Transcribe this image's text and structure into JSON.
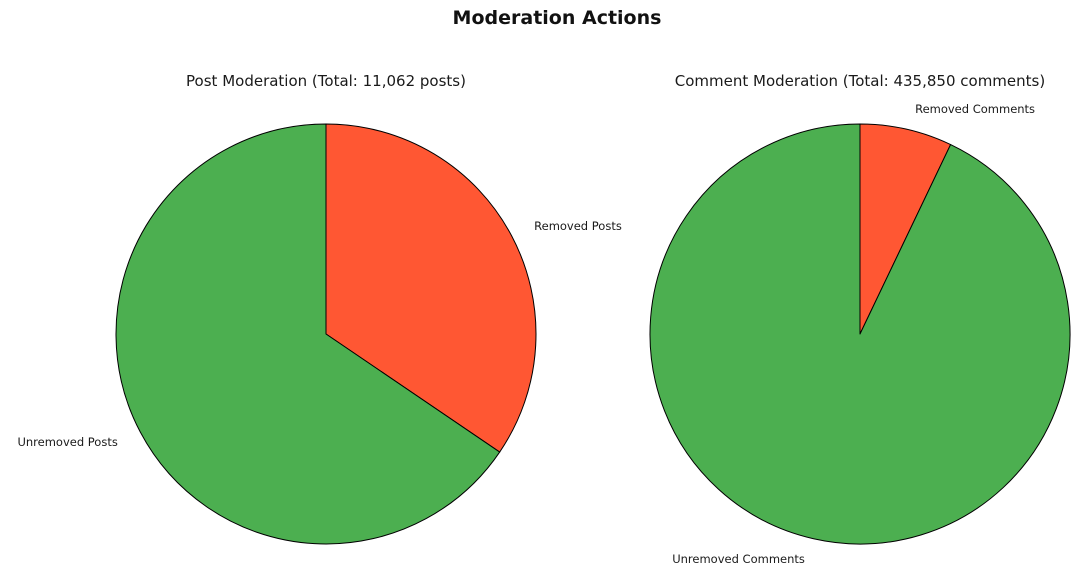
{
  "main_title": "Moderation Actions",
  "background_color": "#ffffff",
  "wedge_edge_color": "#000000",
  "chart_data": [
    {
      "type": "pie",
      "title": "Post Moderation (Total: 11,062 posts)",
      "total": "11,062",
      "unit": "posts",
      "start_angle": "12-o-clock",
      "direction": "clockwise",
      "slices": [
        {
          "label": "Removed Posts",
          "percent": 34.5,
          "percent_label": "34.5%",
          "color": "#FF5733"
        },
        {
          "label": "Unremoved Posts",
          "percent": 65.5,
          "percent_label": "65.5%",
          "color": "#4CAF50"
        }
      ]
    },
    {
      "type": "pie",
      "title": "Comment Moderation (Total: 435,850 comments)",
      "total": "435,850",
      "unit": "comments",
      "start_angle": "12-o-clock",
      "direction": "clockwise",
      "slices": [
        {
          "label": "Removed Comments",
          "percent": 7.1,
          "percent_label": "7.1%",
          "color": "#FF5733"
        },
        {
          "label": "Unremoved Comments",
          "percent": 92.9,
          "percent_label": "92.9%",
          "color": "#4CAF50"
        }
      ]
    }
  ]
}
